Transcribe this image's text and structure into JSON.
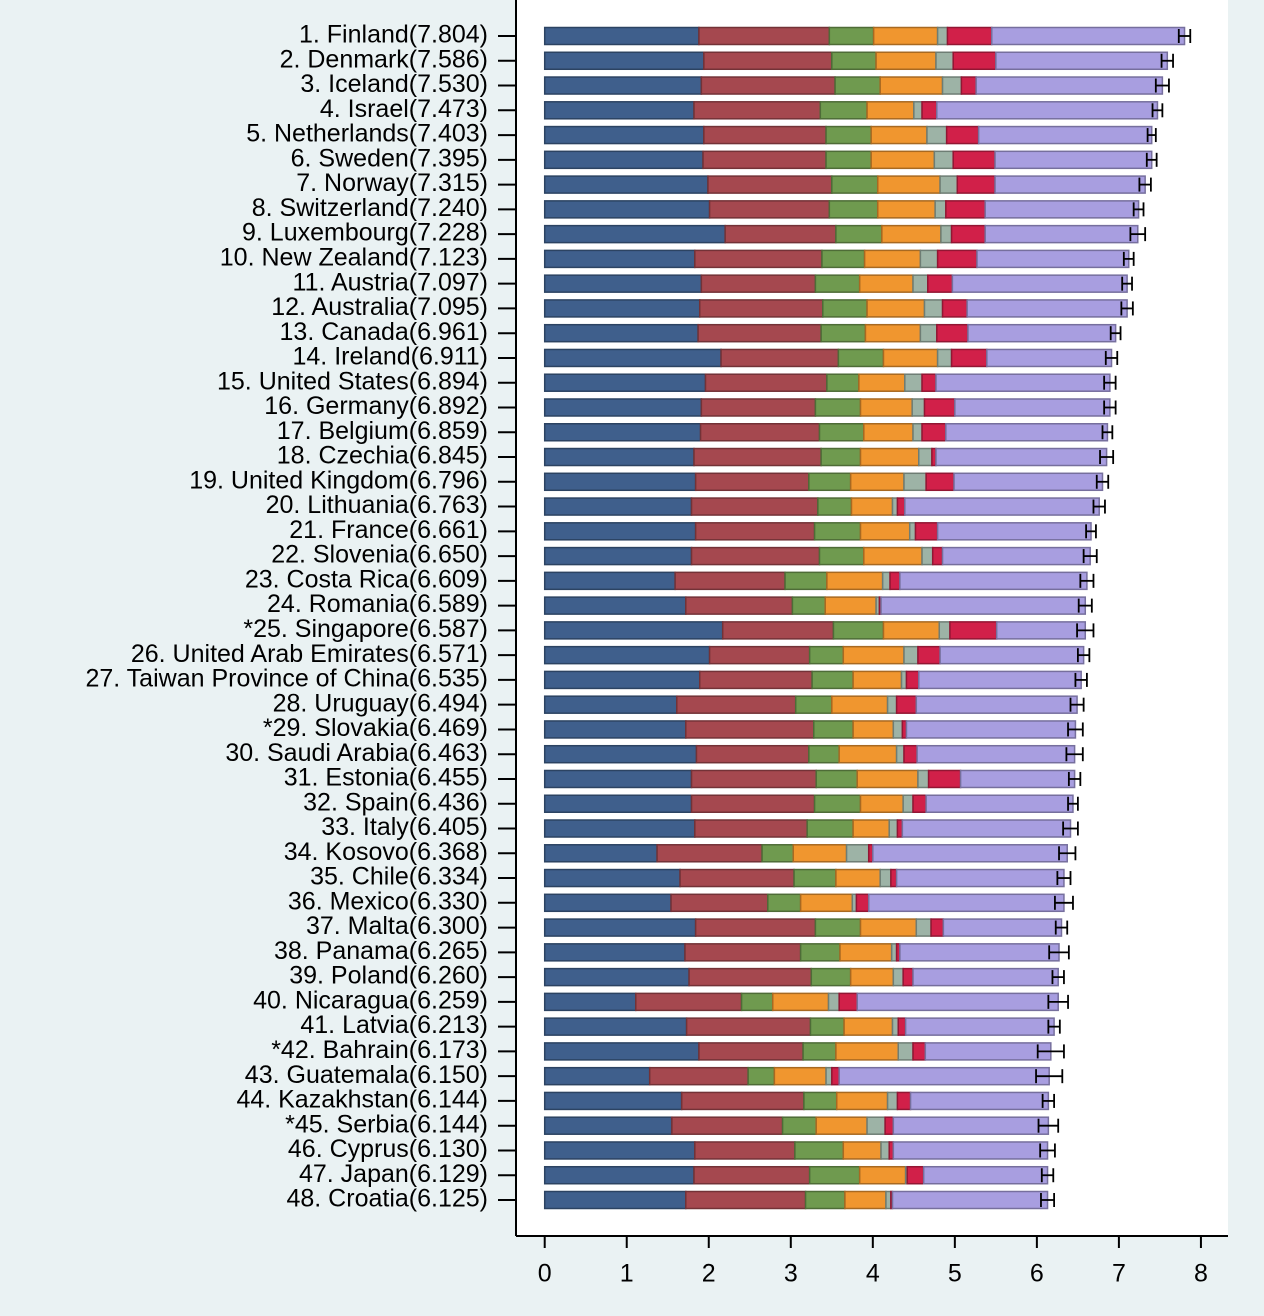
{
  "chart_data": {
    "type": "stacked-barh",
    "categories": [
      "1. Finland(7.804)",
      "2. Denmark(7.586)",
      "3. Iceland(7.530)",
      "4. Israel(7.473)",
      "5. Netherlands(7.403)",
      "6. Sweden(7.395)",
      "7. Norway(7.315)",
      "8. Switzerland(7.240)",
      "9. Luxembourg(7.228)",
      "10. New Zealand(7.123)",
      "11. Austria(7.097)",
      "12. Australia(7.095)",
      "13. Canada(6.961)",
      "14. Ireland(6.911)",
      "15. United States(6.894)",
      "16. Germany(6.892)",
      "17. Belgium(6.859)",
      "18. Czechia(6.845)",
      "19. United Kingdom(6.796)",
      "20. Lithuania(6.763)",
      "21. France(6.661)",
      "22. Slovenia(6.650)",
      "23. Costa Rica(6.609)",
      "24. Romania(6.589)",
      "*25. Singapore(6.587)",
      "26. United Arab Emirates(6.571)",
      "27. Taiwan Province of China(6.535)",
      "28. Uruguay(6.494)",
      "*29. Slovakia(6.469)",
      "30. Saudi Arabia(6.463)",
      "31. Estonia(6.455)",
      "32. Spain(6.436)",
      "33. Italy(6.405)",
      "34. Kosovo(6.368)",
      "35. Chile(6.334)",
      "36. Mexico(6.330)",
      "37. Malta(6.300)",
      "38. Panama(6.265)",
      "39. Poland(6.260)",
      "40. Nicaragua(6.259)",
      "41. Latvia(6.213)",
      "*42. Bahrain(6.173)",
      "43. Guatemala(6.150)",
      "44. Kazakhstan(6.144)",
      "*45. Serbia(6.144)",
      "46. Cyprus(6.130)",
      "47. Japan(6.129)",
      "48. Croatia(6.125)"
    ],
    "series": [
      {
        "color": "#3f5f8c",
        "values": [
          1.88,
          1.94,
          1.91,
          1.82,
          1.94,
          1.93,
          1.99,
          2.01,
          2.2,
          1.83,
          1.91,
          1.89,
          1.87,
          2.15,
          1.96,
          1.91,
          1.9,
          1.82,
          1.84,
          1.79,
          1.84,
          1.79,
          1.59,
          1.72,
          2.17,
          2.01,
          1.89,
          1.61,
          1.72,
          1.85,
          1.79,
          1.79,
          1.83,
          1.37,
          1.65,
          1.54,
          1.84,
          1.71,
          1.76,
          1.11,
          1.73,
          1.88,
          1.28,
          1.67,
          1.55,
          1.83,
          1.82,
          1.72
        ]
      },
      {
        "color": "#a5484f",
        "values": [
          1.59,
          1.56,
          1.63,
          1.54,
          1.49,
          1.5,
          1.51,
          1.46,
          1.35,
          1.55,
          1.39,
          1.5,
          1.5,
          1.43,
          1.48,
          1.39,
          1.45,
          1.55,
          1.38,
          1.54,
          1.45,
          1.56,
          1.34,
          1.3,
          1.35,
          1.22,
          1.37,
          1.45,
          1.56,
          1.37,
          1.52,
          1.5,
          1.37,
          1.28,
          1.39,
          1.18,
          1.46,
          1.41,
          1.49,
          1.29,
          1.51,
          1.27,
          1.2,
          1.49,
          1.35,
          1.22,
          1.41,
          1.46
        ]
      },
      {
        "color": "#6f9a4f",
        "values": [
          0.54,
          0.54,
          0.55,
          0.57,
          0.55,
          0.55,
          0.56,
          0.59,
          0.56,
          0.52,
          0.54,
          0.54,
          0.54,
          0.55,
          0.39,
          0.55,
          0.54,
          0.48,
          0.51,
          0.41,
          0.56,
          0.54,
          0.51,
          0.4,
          0.61,
          0.41,
          0.5,
          0.44,
          0.48,
          0.37,
          0.5,
          0.56,
          0.56,
          0.38,
          0.51,
          0.4,
          0.55,
          0.48,
          0.48,
          0.38,
          0.41,
          0.4,
          0.32,
          0.4,
          0.41,
          0.59,
          0.61,
          0.48
        ]
      },
      {
        "color": "#f0962f",
        "values": [
          0.78,
          0.73,
          0.76,
          0.57,
          0.68,
          0.77,
          0.76,
          0.7,
          0.72,
          0.68,
          0.65,
          0.7,
          0.67,
          0.66,
          0.56,
          0.63,
          0.6,
          0.71,
          0.65,
          0.5,
          0.6,
          0.71,
          0.68,
          0.62,
          0.68,
          0.74,
          0.59,
          0.68,
          0.49,
          0.7,
          0.74,
          0.52,
          0.44,
          0.65,
          0.54,
          0.63,
          0.68,
          0.63,
          0.52,
          0.68,
          0.59,
          0.76,
          0.63,
          0.62,
          0.62,
          0.46,
          0.56,
          0.5
        ]
      },
      {
        "color": "#9db3a6",
        "values": [
          0.12,
          0.21,
          0.23,
          0.1,
          0.24,
          0.23,
          0.21,
          0.13,
          0.13,
          0.21,
          0.18,
          0.22,
          0.2,
          0.17,
          0.21,
          0.15,
          0.11,
          0.16,
          0.27,
          0.06,
          0.07,
          0.13,
          0.09,
          0.04,
          0.13,
          0.17,
          0.06,
          0.11,
          0.11,
          0.09,
          0.13,
          0.12,
          0.1,
          0.27,
          0.13,
          0.05,
          0.18,
          0.06,
          0.12,
          0.13,
          0.07,
          0.18,
          0.07,
          0.12,
          0.22,
          0.1,
          0.02,
          0.06
        ]
      },
      {
        "color": "#d12049",
        "values": [
          0.54,
          0.52,
          0.18,
          0.18,
          0.39,
          0.51,
          0.46,
          0.48,
          0.41,
          0.48,
          0.3,
          0.3,
          0.38,
          0.43,
          0.17,
          0.37,
          0.29,
          0.05,
          0.34,
          0.09,
          0.27,
          0.12,
          0.12,
          0.02,
          0.57,
          0.27,
          0.15,
          0.24,
          0.05,
          0.16,
          0.39,
          0.16,
          0.06,
          0.05,
          0.07,
          0.15,
          0.15,
          0.04,
          0.12,
          0.22,
          0.09,
          0.15,
          0.09,
          0.16,
          0.1,
          0.05,
          0.2,
          0.02
        ]
      },
      {
        "color": "#a89ee0",
        "values": [
          2.35,
          2.09,
          2.27,
          2.69,
          2.11,
          1.91,
          1.83,
          1.87,
          1.86,
          1.85,
          2.13,
          1.95,
          1.8,
          1.52,
          2.12,
          1.89,
          1.97,
          2.08,
          1.81,
          2.37,
          1.87,
          1.8,
          2.28,
          2.49,
          1.08,
          1.75,
          1.98,
          1.96,
          2.06,
          1.92,
          1.39,
          1.79,
          2.05,
          2.37,
          2.04,
          2.38,
          1.44,
          1.94,
          1.77,
          2.45,
          1.81,
          1.53,
          2.56,
          1.68,
          1.89,
          1.88,
          1.51,
          1.89
        ]
      }
    ],
    "error": [
      0.07,
      0.07,
      0.08,
      0.06,
      0.05,
      0.06,
      0.07,
      0.06,
      0.09,
      0.06,
      0.06,
      0.07,
      0.06,
      0.07,
      0.07,
      0.07,
      0.06,
      0.08,
      0.07,
      0.07,
      0.06,
      0.08,
      0.08,
      0.08,
      0.1,
      0.07,
      0.07,
      0.08,
      0.09,
      0.1,
      0.07,
      0.06,
      0.09,
      0.1,
      0.08,
      0.11,
      0.07,
      0.12,
      0.07,
      0.12,
      0.07,
      0.16,
      0.16,
      0.07,
      0.12,
      0.09,
      0.07,
      0.08
    ],
    "xlim": [
      -0.35,
      8.33
    ],
    "xticks": [
      0,
      1,
      2,
      3,
      4,
      5,
      6,
      7,
      8
    ]
  }
}
